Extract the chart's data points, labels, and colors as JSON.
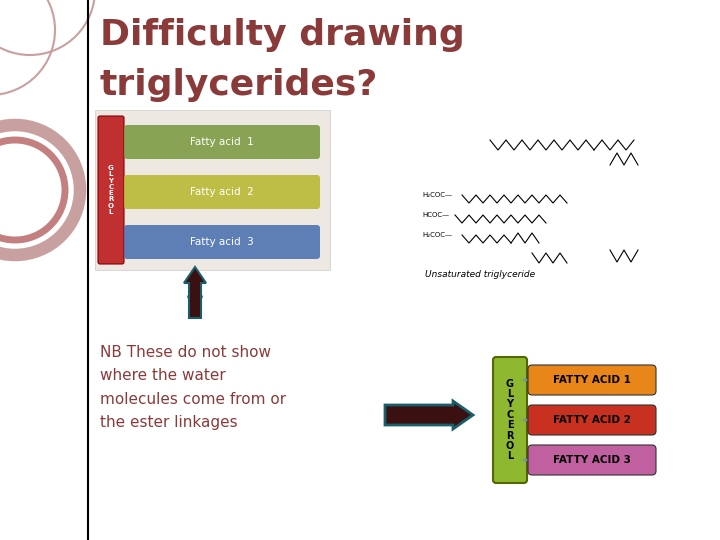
{
  "title_line1": "Difficulty drawing",
  "title_line2": "triglycerides?",
  "title_color": "#8B3A3A",
  "title_fontsize": 26,
  "nb_text": "NB These do not show\nwhere the water\nmolecules come from or\nthe ester linkages",
  "nb_color": "#8B3A3A",
  "nb_fontsize": 11,
  "bg_color": "#FFFFFF",
  "slide_border_color": "#000000",
  "decor_circle1_color": "#C9A0A0",
  "decor_circle2_color": "#C48080",
  "glycerol_color": "#8DB830",
  "glycerol_text": "G\nL\nY\nC\nE\nR\nO\nL",
  "fatty_labels": [
    "FATTY ACID 1",
    "FATTY ACID 2",
    "FATTY ACID 3"
  ],
  "fatty_colors": [
    "#E8861A",
    "#C83020",
    "#C060A0"
  ],
  "arrow_right_fill": "#3A1010",
  "arrow_right_border": "#1A5E6A",
  "up_arrow_fill": "#3A1010",
  "up_arrow_border": "#1A5E6A",
  "connector_color": "#7090C0",
  "left_img_bg": "#F0EEE8",
  "glycerol_band_color": "#C03030",
  "band1_color": "#7A9A40",
  "band2_color": "#B8B830",
  "band3_color": "#4A70B0",
  "band1_label": "Fatty acid  1",
  "band2_label": "Fatty acid  2",
  "band3_label": "Fatty acid  3"
}
